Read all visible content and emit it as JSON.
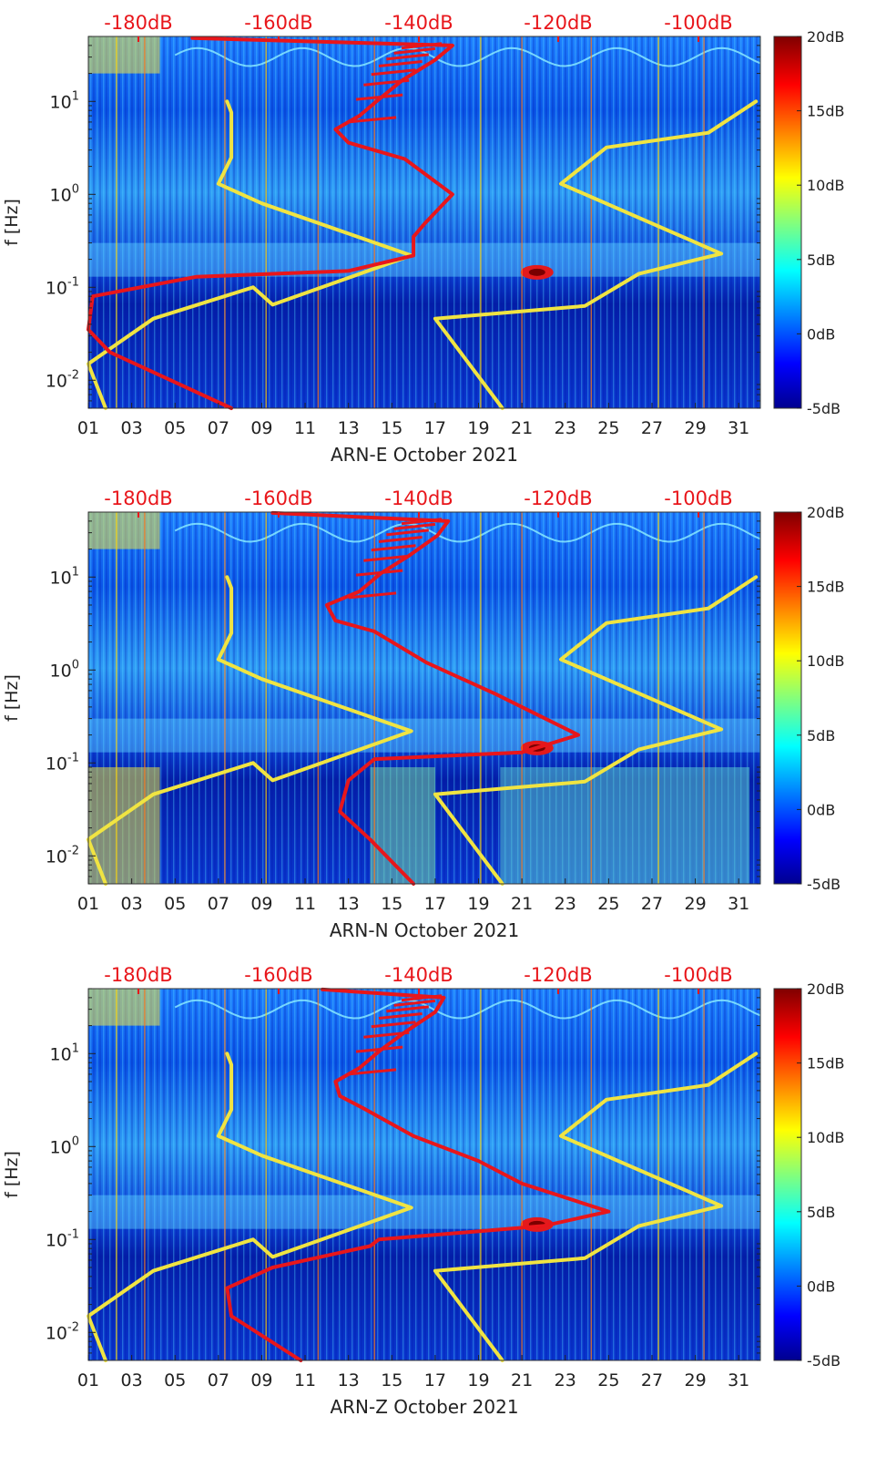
{
  "chart_data": [
    {
      "type": "heatmap",
      "xlabel": "ARN-E October 2021",
      "ylabel": "f [Hz]",
      "x_ticks": [
        "01",
        "03",
        "05",
        "07",
        "09",
        "11",
        "13",
        "15",
        "17",
        "19",
        "21",
        "23",
        "25",
        "27",
        "29",
        "31"
      ],
      "y_ticks": [
        "10^{-2}",
        "10^{-1}",
        "10^{0}",
        "10^{1}"
      ],
      "y_scale": "log",
      "ylim": [
        0.005,
        50
      ],
      "xlim": [
        1,
        32
      ],
      "top_axis_ticks": [
        "-180dB",
        "-160dB",
        "-140dB",
        "-120dB",
        "-100dB"
      ],
      "top_axis_color": "#e8161b",
      "colorbar": {
        "ticks": [
          "20dB",
          "15dB",
          "10dB",
          "5dB",
          "0dB",
          "-5dB"
        ],
        "range": [
          -5,
          20
        ],
        "colormap": "jet"
      },
      "series": [
        {
          "color": "#f0e442",
          "points": [
            [
              7.4,
              10
            ],
            [
              7.6,
              7.6
            ],
            [
              7.6,
              2.5
            ],
            [
              7,
              1.3
            ],
            [
              9,
              0.8
            ],
            [
              15.9,
              0.22
            ],
            [
              9.5,
              0.065
            ],
            [
              8.6,
              0.1
            ],
            [
              4,
              0.046
            ],
            [
              1,
              0.015
            ],
            [
              1.8,
              0.005
            ]
          ]
        },
        {
          "color": "#f0e442",
          "points": [
            [
              31.8,
              10
            ],
            [
              29.6,
              4.6
            ],
            [
              24.9,
              3.2
            ],
            [
              22.8,
              1.3
            ],
            [
              30.2,
              0.23
            ],
            [
              26.4,
              0.14
            ],
            [
              23.9,
              0.063
            ],
            [
              17,
              0.046
            ],
            [
              20.1,
              0.005
            ]
          ]
        },
        {
          "color": "#e8161b",
          "points": [
            [
              7.6,
              0.005
            ],
            [
              2,
              0.02
            ],
            [
              1,
              0.035
            ],
            [
              1.2,
              0.08
            ],
            [
              6,
              0.13
            ],
            [
              13,
              0.15
            ],
            [
              16,
              0.22
            ],
            [
              16,
              0.35
            ],
            [
              16.5,
              0.48
            ],
            [
              17.8,
              1.0
            ],
            [
              15.6,
              2.4
            ],
            [
              13,
              3.6
            ],
            [
              12.4,
              5
            ],
            [
              13.5,
              7
            ],
            [
              14.5,
              11
            ],
            [
              15.5,
              17
            ],
            [
              17,
              28
            ],
            [
              17.8,
              40
            ],
            [
              5.8,
              48
            ]
          ]
        }
      ]
    },
    {
      "type": "heatmap",
      "xlabel": "ARN-N October 2021",
      "ylabel": "f [Hz]",
      "x_ticks": [
        "01",
        "03",
        "05",
        "07",
        "09",
        "11",
        "13",
        "15",
        "17",
        "19",
        "21",
        "23",
        "25",
        "27",
        "29",
        "31"
      ],
      "y_ticks": [
        "10^{-2}",
        "10^{-1}",
        "10^{0}",
        "10^{1}"
      ],
      "y_scale": "log",
      "ylim": [
        0.005,
        50
      ],
      "xlim": [
        1,
        32
      ],
      "top_axis_ticks": [
        "-180dB",
        "-160dB",
        "-140dB",
        "-120dB",
        "-100dB"
      ],
      "top_axis_color": "#e8161b",
      "colorbar": {
        "ticks": [
          "20dB",
          "15dB",
          "10dB",
          "5dB",
          "0dB",
          "-5dB"
        ],
        "range": [
          -5,
          20
        ],
        "colormap": "jet"
      },
      "series": [
        {
          "color": "#f0e442",
          "points": [
            [
              7.4,
              10
            ],
            [
              7.6,
              7.6
            ],
            [
              7.6,
              2.5
            ],
            [
              7,
              1.3
            ],
            [
              9,
              0.8
            ],
            [
              15.9,
              0.22
            ],
            [
              9.5,
              0.065
            ],
            [
              8.6,
              0.1
            ],
            [
              4,
              0.046
            ],
            [
              1,
              0.015
            ],
            [
              1.8,
              0.005
            ]
          ]
        },
        {
          "color": "#f0e442",
          "points": [
            [
              31.8,
              10
            ],
            [
              29.6,
              4.6
            ],
            [
              24.9,
              3.2
            ],
            [
              22.8,
              1.3
            ],
            [
              30.2,
              0.23
            ],
            [
              26.4,
              0.14
            ],
            [
              23.9,
              0.063
            ],
            [
              17,
              0.046
            ],
            [
              20.1,
              0.005
            ]
          ]
        },
        {
          "color": "#e8161b",
          "points": [
            [
              16,
              0.005
            ],
            [
              14,
              0.015
            ],
            [
              12.6,
              0.03
            ],
            [
              13,
              0.065
            ],
            [
              14.2,
              0.11
            ],
            [
              21,
              0.13
            ],
            [
              23.6,
              0.2
            ],
            [
              21,
              0.4
            ],
            [
              19.8,
              0.55
            ],
            [
              16.6,
              1.2
            ],
            [
              14.2,
              2.6
            ],
            [
              12.4,
              3.4
            ],
            [
              12,
              5
            ],
            [
              13.5,
              7
            ],
            [
              14.5,
              11
            ],
            [
              15.8,
              17
            ],
            [
              17.1,
              28
            ],
            [
              17.6,
              40
            ],
            [
              9.5,
              49
            ]
          ]
        }
      ]
    },
    {
      "type": "heatmap",
      "xlabel": "ARN-Z October 2021",
      "ylabel": "f [Hz]",
      "x_ticks": [
        "01",
        "03",
        "05",
        "07",
        "09",
        "11",
        "13",
        "15",
        "17",
        "19",
        "21",
        "23",
        "25",
        "27",
        "29",
        "31"
      ],
      "y_ticks": [
        "10^{-2}",
        "10^{-1}",
        "10^{0}",
        "10^{1}"
      ],
      "y_scale": "log",
      "ylim": [
        0.005,
        50
      ],
      "xlim": [
        1,
        32
      ],
      "top_axis_ticks": [
        "-180dB",
        "-160dB",
        "-140dB",
        "-120dB",
        "-100dB"
      ],
      "top_axis_color": "#e8161b",
      "colorbar": {
        "ticks": [
          "20dB",
          "15dB",
          "10dB",
          "5dB",
          "0dB",
          "-5dB"
        ],
        "range": [
          -5,
          20
        ],
        "colormap": "jet"
      },
      "series": [
        {
          "color": "#f0e442",
          "points": [
            [
              7.4,
              10
            ],
            [
              7.6,
              7.6
            ],
            [
              7.6,
              2.5
            ],
            [
              7,
              1.3
            ],
            [
              9,
              0.8
            ],
            [
              15.9,
              0.22
            ],
            [
              9.5,
              0.065
            ],
            [
              8.6,
              0.1
            ],
            [
              4,
              0.046
            ],
            [
              1,
              0.015
            ],
            [
              1.8,
              0.005
            ]
          ]
        },
        {
          "color": "#f0e442",
          "points": [
            [
              31.8,
              10
            ],
            [
              29.6,
              4.6
            ],
            [
              24.9,
              3.2
            ],
            [
              22.8,
              1.3
            ],
            [
              30.2,
              0.23
            ],
            [
              26.4,
              0.14
            ],
            [
              23.9,
              0.063
            ],
            [
              17,
              0.046
            ],
            [
              20.1,
              0.005
            ]
          ]
        },
        {
          "color": "#e8161b",
          "points": [
            [
              10.8,
              0.005
            ],
            [
              7.6,
              0.015
            ],
            [
              7.4,
              0.03
            ],
            [
              9.5,
              0.05
            ],
            [
              14,
              0.085
            ],
            [
              14.4,
              0.1
            ],
            [
              22,
              0.14
            ],
            [
              25,
              0.2
            ],
            [
              21,
              0.4
            ],
            [
              19,
              0.7
            ],
            [
              16,
              1.3
            ],
            [
              13.8,
              2.5
            ],
            [
              12.6,
              3.5
            ],
            [
              12.4,
              5
            ],
            [
              13.5,
              7
            ],
            [
              14.5,
              11
            ],
            [
              15.6,
              17
            ],
            [
              17,
              28
            ],
            [
              17.4,
              40
            ],
            [
              11.8,
              49
            ]
          ]
        }
      ]
    }
  ]
}
